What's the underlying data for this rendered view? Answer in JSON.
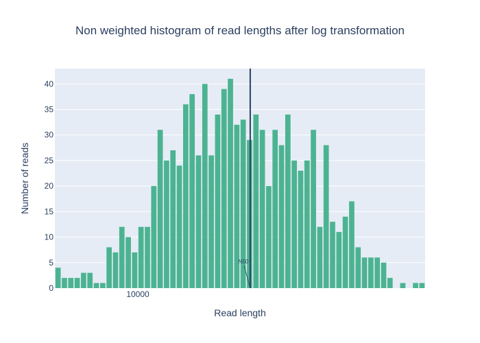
{
  "chart_data": {
    "type": "bar",
    "title": "Non weighted histogram of read lengths after log transformation",
    "xlabel": "Read length",
    "ylabel": "Number of reads",
    "ylim": [
      0,
      43
    ],
    "yticks": [
      0,
      5,
      10,
      15,
      20,
      25,
      30,
      35,
      40
    ],
    "x_tick_labels": [
      "10000"
    ],
    "values": [
      4,
      2,
      2,
      2,
      3,
      3,
      1,
      1,
      8,
      7,
      12,
      10,
      7,
      12,
      12,
      20,
      31,
      25,
      27,
      24,
      36,
      38,
      26,
      40,
      26,
      34,
      39,
      41,
      32,
      33,
      29,
      34,
      31,
      20,
      31,
      28,
      34,
      25,
      23,
      25,
      31,
      12,
      28,
      13,
      11,
      14,
      17,
      8,
      6,
      6,
      6,
      5,
      2,
      0,
      1,
      0,
      1,
      1
    ],
    "n50_marker": {
      "label": "N50",
      "bin_position": 30.6
    },
    "grid": true,
    "legend": "none",
    "colors": {
      "bar": "#4cb391",
      "plot_bg": "#e5ecf6",
      "marker_line": "#2a3f5f",
      "text": "#2a3f5f"
    }
  }
}
